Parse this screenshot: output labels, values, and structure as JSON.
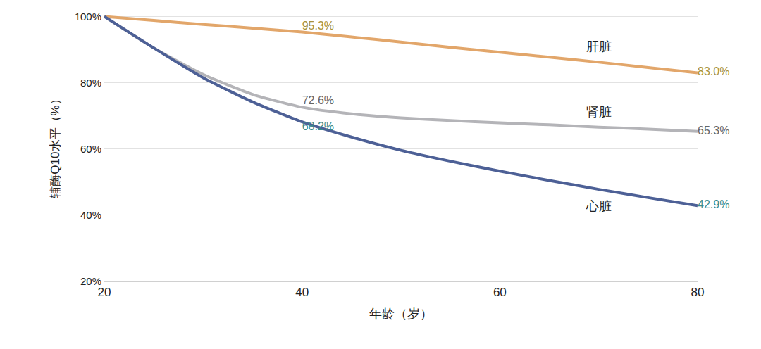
{
  "chart_data": {
    "type": "line",
    "x_label": "年龄（岁）",
    "y_label": "辅酶Q10水平（%）",
    "x": [
      20,
      25,
      30,
      35,
      40,
      45,
      50,
      55,
      60,
      65,
      70,
      75,
      80
    ],
    "series": [
      {
        "name": "肝脏",
        "color": "#e2a66a",
        "values": [
          100,
          98.8,
          97.6,
          96.5,
          95.3,
          93.8,
          92.3,
          90.7,
          89.2,
          87.7,
          86.2,
          84.6,
          83.0
        ],
        "value_labels": [
          null,
          null,
          null,
          null,
          "95.3%",
          null,
          null,
          null,
          null,
          null,
          null,
          null,
          "83.0%"
        ]
      },
      {
        "name": "肾脏",
        "color": "#b4b4b8",
        "values": [
          100,
          90.5,
          82.5,
          76.5,
          72.6,
          70.6,
          69.4,
          68.6,
          67.9,
          67.3,
          66.6,
          66.0,
          65.3
        ],
        "value_labels": [
          null,
          null,
          null,
          null,
          "72.6%",
          null,
          null,
          null,
          null,
          null,
          null,
          null,
          "65.3%"
        ]
      },
      {
        "name": "心脏",
        "color": "#4d6096",
        "values": [
          100,
          90.5,
          81.5,
          74.2,
          68.2,
          63.6,
          59.6,
          56.3,
          53.3,
          50.5,
          47.8,
          45.3,
          42.9
        ],
        "value_labels": [
          null,
          null,
          null,
          null,
          "68.2%",
          null,
          null,
          null,
          null,
          null,
          null,
          null,
          "42.9%"
        ]
      }
    ],
    "data_labels": true,
    "xlim": [
      20,
      80
    ],
    "xticks": [
      20,
      40,
      60,
      80
    ],
    "ylim": [
      20,
      102
    ],
    "yticks": [
      {
        "value": 20,
        "label": "20%"
      },
      {
        "value": 40,
        "label": "40%"
      },
      {
        "value": 60,
        "label": "60%"
      },
      {
        "value": 80,
        "label": "80%"
      },
      {
        "value": 100,
        "label": "100%"
      }
    ],
    "grid": true
  }
}
